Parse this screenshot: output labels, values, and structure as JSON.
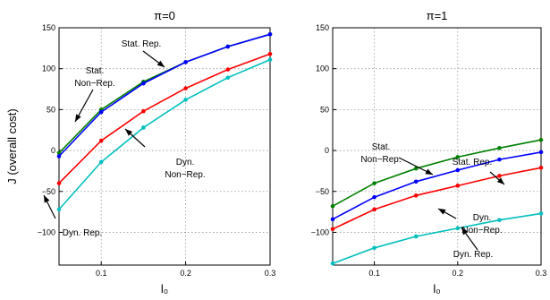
{
  "chart_data": [
    {
      "type": "line",
      "title": "π=0",
      "xlabel": "l₀",
      "ylabel": "J (overall cost)",
      "xlim": [
        0.05,
        0.3
      ],
      "ylim": [
        -140,
        150
      ],
      "xticks": [
        0.1,
        0.2,
        0.3
      ],
      "xtick_labels": [
        "0.1",
        "0.2",
        "0.3"
      ],
      "yticks": [
        -100,
        -50,
        0,
        50,
        100,
        150
      ],
      "ytick_labels": [
        "−100",
        "−50",
        "0",
        "50",
        "100",
        "150"
      ],
      "grid": true,
      "x": [
        0.05,
        0.1,
        0.15,
        0.2,
        0.25,
        0.3
      ],
      "series": [
        {
          "name": "Stat. Rep.",
          "color": "#008000",
          "values": [
            -3,
            50,
            84,
            108,
            127,
            142
          ]
        },
        {
          "name": "Stat. Non-Rep.",
          "color": "#0000ff",
          "values": [
            -7,
            47,
            82,
            108,
            127,
            142
          ]
        },
        {
          "name": "Dyn. Non-Rep.",
          "color": "#ff0000",
          "values": [
            -40,
            12,
            48,
            76,
            99,
            118
          ]
        },
        {
          "name": "Dyn. Rep.",
          "color": "#00bfbf",
          "values": [
            -72,
            -14,
            28,
            62,
            89,
            111
          ]
        }
      ],
      "annotations": [
        {
          "lines": [
            "Stat. Rep."
          ],
          "series": 0
        },
        {
          "lines": [
            "Stat.",
            "Non−Rep."
          ],
          "series": 1
        },
        {
          "lines": [
            "Dyn.",
            "Non−Rep."
          ],
          "series": 2
        },
        {
          "lines": [
            "Dyn. Rep."
          ],
          "series": 3
        }
      ]
    },
    {
      "type": "line",
      "title": "π=1",
      "xlabel": "l₀",
      "ylabel": "",
      "xlim": [
        0.05,
        0.3
      ],
      "ylim": [
        -140,
        150
      ],
      "xticks": [
        0.1,
        0.2,
        0.3
      ],
      "xtick_labels": [
        "0.1",
        "0.2",
        "0.3"
      ],
      "yticks": [
        -100,
        -50,
        0,
        50,
        100,
        150
      ],
      "ytick_labels": [
        "−100",
        "−50",
        "0",
        "50",
        "100",
        "150"
      ],
      "grid": true,
      "x": [
        0.05,
        0.1,
        0.15,
        0.2,
        0.25,
        0.3
      ],
      "series": [
        {
          "name": "Stat. Rep.",
          "color": "#008000",
          "values": [
            -68,
            -40,
            -22,
            -8,
            3,
            13
          ]
        },
        {
          "name": "Stat. Non-Rep.",
          "color": "#0000ff",
          "values": [
            -84,
            -57,
            -38,
            -24,
            -11,
            -2
          ]
        },
        {
          "name": "Dyn. Non-Rep.",
          "color": "#ff0000",
          "values": [
            -96,
            -72,
            -55,
            -43,
            -31,
            -21
          ]
        },
        {
          "name": "Dyn. Rep.",
          "color": "#00bfbf",
          "values": [
            -138,
            -119,
            -105,
            -95,
            -85,
            -77
          ]
        }
      ],
      "annotations": [
        {
          "lines": [
            "Stat. Rep."
          ],
          "series": 0
        },
        {
          "lines": [
            "Stat.",
            "Non−Rep."
          ],
          "series": 1
        },
        {
          "lines": [
            "Dyn.",
            "Non−Rep."
          ],
          "series": 2
        },
        {
          "lines": [
            "Dyn. Rep."
          ],
          "series": 3
        }
      ]
    }
  ]
}
